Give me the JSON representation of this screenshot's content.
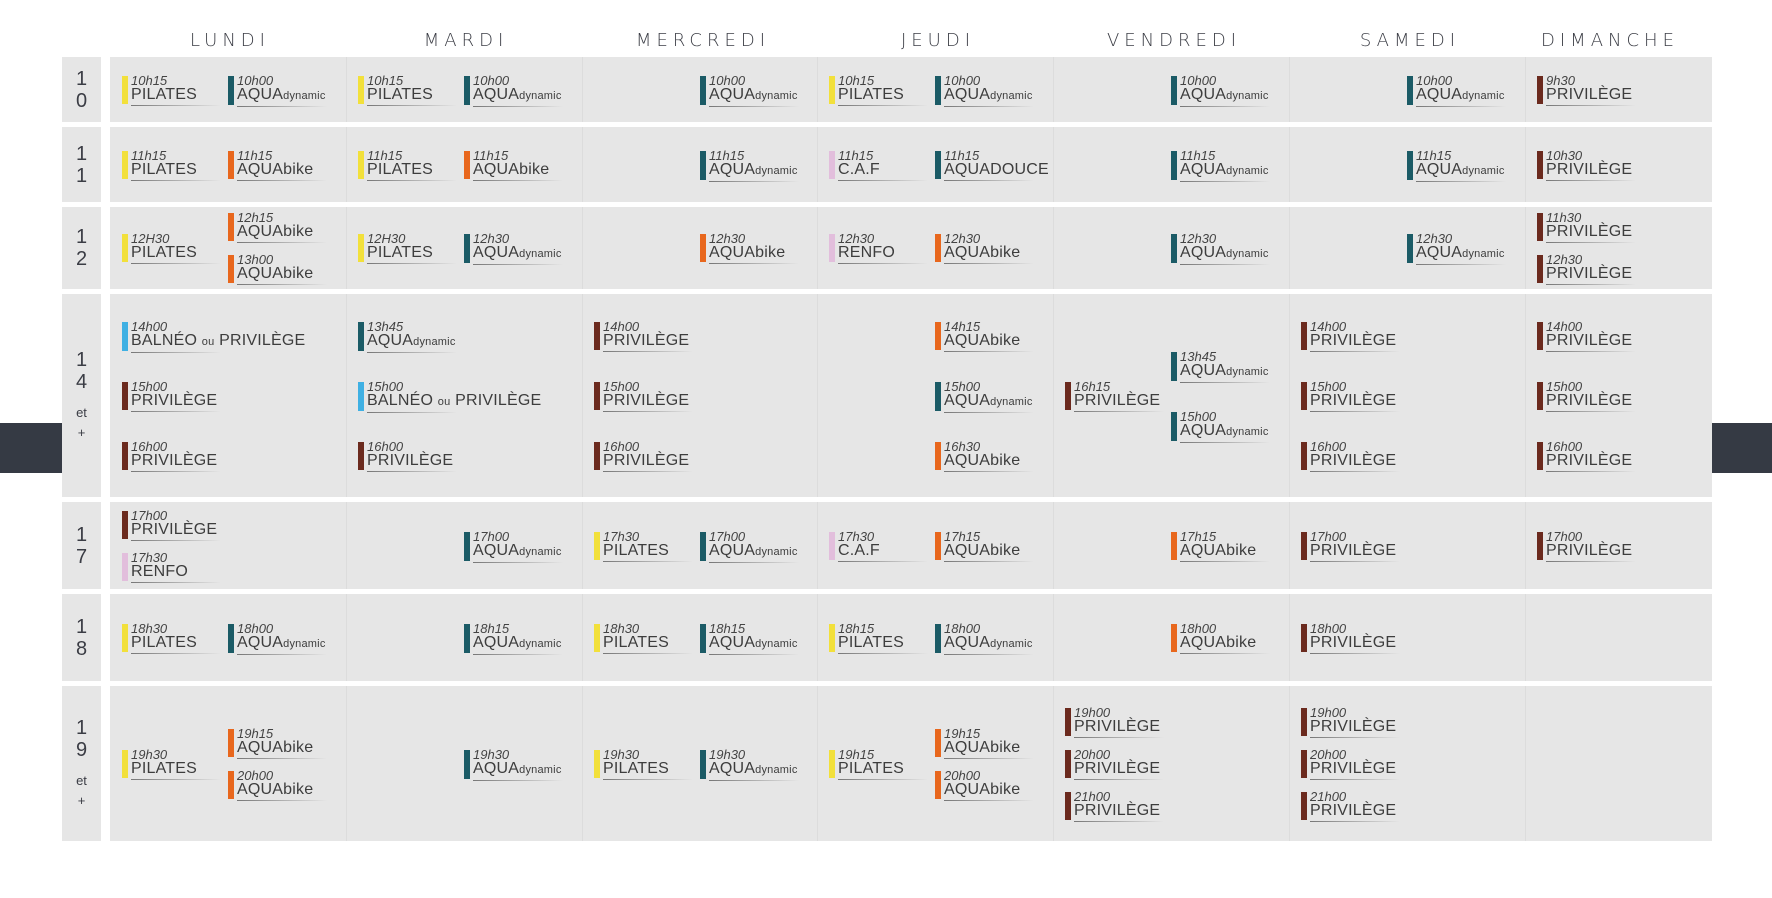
{
  "colors": {
    "pilates": "#f2e03b",
    "aquadynamic": "#1b5b66",
    "aquabike": "#e8671d",
    "privilege": "#6b2a1e",
    "balneo": "#3fb0e3",
    "caf": "#e2bedc",
    "renfo": "#e2bedc",
    "aquadouce": "#1b5b66",
    "panel": "#e6e6e6",
    "tab": "#353a44"
  },
  "days": [
    "LUNDI",
    "MARDI",
    "MERCREDI",
    "JEUDI",
    "VENDREDI",
    "SAMEDI",
    "DIMANCHE"
  ],
  "bands": [
    {
      "label": [
        "1",
        "0"
      ],
      "sub": []
    },
    {
      "label": [
        "1",
        "1"
      ],
      "sub": []
    },
    {
      "label": [
        "1",
        "2"
      ],
      "sub": []
    },
    {
      "label": [
        "1",
        "4"
      ],
      "sub": [
        "et",
        "+"
      ]
    },
    {
      "label": [
        "1",
        "7"
      ],
      "sub": []
    },
    {
      "label": [
        "1",
        "8"
      ],
      "sub": []
    },
    {
      "label": [
        "1",
        "9"
      ],
      "sub": [
        "et",
        "+"
      ]
    }
  ],
  "classes": [
    {
      "band": 0,
      "day": 0,
      "slot": 0,
      "time": "10h15",
      "name": "PILATES",
      "type": "pilates"
    },
    {
      "band": 0,
      "day": 0,
      "slot": 1,
      "time": "10h00",
      "name": "AQUA",
      "suffix": "dynamic",
      "type": "aquadynamic"
    },
    {
      "band": 0,
      "day": 1,
      "slot": 0,
      "time": "10h15",
      "name": "PILATES",
      "type": "pilates"
    },
    {
      "band": 0,
      "day": 1,
      "slot": 1,
      "time": "10h00",
      "name": "AQUA",
      "suffix": "dynamic",
      "type": "aquadynamic"
    },
    {
      "band": 0,
      "day": 2,
      "slot": 1,
      "time": "10h00",
      "name": "AQUA",
      "suffix": "dynamic",
      "type": "aquadynamic"
    },
    {
      "band": 0,
      "day": 3,
      "slot": 0,
      "time": "10h15",
      "name": "PILATES",
      "type": "pilates"
    },
    {
      "band": 0,
      "day": 3,
      "slot": 1,
      "time": "10h00",
      "name": "AQUA",
      "suffix": "dynamic",
      "type": "aquadynamic"
    },
    {
      "band": 0,
      "day": 4,
      "slot": 1,
      "time": "10h00",
      "name": "AQUA",
      "suffix": "dynamic",
      "type": "aquadynamic"
    },
    {
      "band": 0,
      "day": 5,
      "slot": 1,
      "time": "10h00",
      "name": "AQUA",
      "suffix": "dynamic",
      "type": "aquadynamic"
    },
    {
      "band": 0,
      "day": 6,
      "slot": 0,
      "time": "9h30",
      "name": "PRIVILÈGE",
      "type": "privilege"
    },
    {
      "band": 1,
      "day": 0,
      "slot": 0,
      "time": "11h15",
      "name": "PILATES",
      "type": "pilates"
    },
    {
      "band": 1,
      "day": 0,
      "slot": 1,
      "time": "11h15",
      "name": "AQUAbike",
      "type": "aquabike"
    },
    {
      "band": 1,
      "day": 1,
      "slot": 0,
      "time": "11h15",
      "name": "PILATES",
      "type": "pilates"
    },
    {
      "band": 1,
      "day": 1,
      "slot": 1,
      "time": "11h15",
      "name": "AQUAbike",
      "type": "aquabike"
    },
    {
      "band": 1,
      "day": 2,
      "slot": 1,
      "time": "11h15",
      "name": "AQUA",
      "suffix": "dynamic",
      "type": "aquadynamic"
    },
    {
      "band": 1,
      "day": 3,
      "slot": 0,
      "time": "11h15",
      "name": "C.A.F",
      "type": "caf"
    },
    {
      "band": 1,
      "day": 3,
      "slot": 1,
      "time": "11h15",
      "name": "AQUADOUCE",
      "type": "aquadouce"
    },
    {
      "band": 1,
      "day": 4,
      "slot": 1,
      "time": "11h15",
      "name": "AQUA",
      "suffix": "dynamic",
      "type": "aquadynamic"
    },
    {
      "band": 1,
      "day": 5,
      "slot": 1,
      "time": "11h15",
      "name": "AQUA",
      "suffix": "dynamic",
      "type": "aquadynamic"
    },
    {
      "band": 1,
      "day": 6,
      "slot": 0,
      "time": "10h30",
      "name": "PRIVILÈGE",
      "type": "privilege"
    },
    {
      "band": 2,
      "day": 0,
      "slot": 0,
      "time": "12H30",
      "name": "PILATES",
      "type": "pilates"
    },
    {
      "band": 2,
      "day": 0,
      "slot": 1,
      "time": "12h15",
      "name": "AQUAbike",
      "type": "aquabike"
    },
    {
      "band": 2,
      "day": 0,
      "slot": 1,
      "time": "13h00",
      "name": "AQUAbike",
      "type": "aquabike"
    },
    {
      "band": 2,
      "day": 1,
      "slot": 0,
      "time": "12H30",
      "name": "PILATES",
      "type": "pilates"
    },
    {
      "band": 2,
      "day": 1,
      "slot": 1,
      "time": "12h30",
      "name": "AQUA",
      "suffix": "dynamic",
      "type": "aquadynamic"
    },
    {
      "band": 2,
      "day": 2,
      "slot": 1,
      "time": "12h30",
      "name": "AQUAbike",
      "type": "aquabike"
    },
    {
      "band": 2,
      "day": 3,
      "slot": 0,
      "time": "12h30",
      "name": "RENFO",
      "type": "renfo"
    },
    {
      "band": 2,
      "day": 3,
      "slot": 1,
      "time": "12h30",
      "name": "AQUAbike",
      "type": "aquabike"
    },
    {
      "band": 2,
      "day": 4,
      "slot": 1,
      "time": "12h30",
      "name": "AQUA",
      "suffix": "dynamic",
      "type": "aquadynamic"
    },
    {
      "band": 2,
      "day": 5,
      "slot": 1,
      "time": "12h30",
      "name": "AQUA",
      "suffix": "dynamic",
      "type": "aquadynamic"
    },
    {
      "band": 2,
      "day": 6,
      "slot": 0,
      "time": "11h30",
      "name": "PRIVILÈGE",
      "type": "privilege"
    },
    {
      "band": 2,
      "day": 6,
      "slot": 0,
      "time": "12h30",
      "name": "PRIVILÈGE",
      "type": "privilege"
    },
    {
      "band": 3,
      "day": 0,
      "slot": 0,
      "time": "14h00",
      "name": "BALNÉO",
      "mid": "ou",
      "tail": "PRIVILÈGE",
      "type": "balneo"
    },
    {
      "band": 3,
      "day": 0,
      "slot": 0,
      "time": "15h00",
      "name": "PRIVILÈGE",
      "type": "privilege"
    },
    {
      "band": 3,
      "day": 0,
      "slot": 0,
      "time": "16h00",
      "name": "PRIVILÈGE",
      "type": "privilege"
    },
    {
      "band": 3,
      "day": 1,
      "slot": 0,
      "time": "13h45",
      "name": "AQUA",
      "suffix": "dynamic",
      "type": "aquadynamic"
    },
    {
      "band": 3,
      "day": 1,
      "slot": 0,
      "time": "15h00",
      "name": "BALNÉO",
      "mid": "ou",
      "tail": "PRIVILÈGE",
      "type": "balneo"
    },
    {
      "band": 3,
      "day": 1,
      "slot": 0,
      "time": "16h00",
      "name": "PRIVILÈGE",
      "type": "privilege"
    },
    {
      "band": 3,
      "day": 2,
      "slot": 0,
      "time": "14h00",
      "name": "PRIVILÈGE",
      "type": "privilege"
    },
    {
      "band": 3,
      "day": 2,
      "slot": 0,
      "time": "15h00",
      "name": "PRIVILÈGE",
      "type": "privilege"
    },
    {
      "band": 3,
      "day": 2,
      "slot": 0,
      "time": "16h00",
      "name": "PRIVILÈGE",
      "type": "privilege"
    },
    {
      "band": 3,
      "day": 3,
      "slot": 1,
      "time": "14h15",
      "name": "AQUAbike",
      "type": "aquabike"
    },
    {
      "band": 3,
      "day": 3,
      "slot": 1,
      "time": "15h00",
      "name": "AQUA",
      "suffix": "dynamic",
      "type": "aquadynamic"
    },
    {
      "band": 3,
      "day": 3,
      "slot": 1,
      "time": "16h30",
      "name": "AQUAbike",
      "type": "aquabike"
    },
    {
      "band": 3,
      "day": 4,
      "slot": 0,
      "time": "16h15",
      "name": "PRIVILÈGE",
      "type": "privilege"
    },
    {
      "band": 3,
      "day": 4,
      "slot": 1,
      "time": "13h45",
      "name": "AQUA",
      "suffix": "dynamic",
      "type": "aquadynamic"
    },
    {
      "band": 3,
      "day": 4,
      "slot": 1,
      "time": "15h00",
      "name": "AQUA",
      "suffix": "dynamic",
      "type": "aquadynamic"
    },
    {
      "band": 3,
      "day": 5,
      "slot": 0,
      "time": "14h00",
      "name": "PRIVILÈGE",
      "type": "privilege"
    },
    {
      "band": 3,
      "day": 5,
      "slot": 0,
      "time": "15h00",
      "name": "PRIVILÈGE",
      "type": "privilege"
    },
    {
      "band": 3,
      "day": 5,
      "slot": 0,
      "time": "16h00",
      "name": "PRIVILÈGE",
      "type": "privilege"
    },
    {
      "band": 3,
      "day": 6,
      "slot": 0,
      "time": "14h00",
      "name": "PRIVILÈGE",
      "type": "privilege"
    },
    {
      "band": 3,
      "day": 6,
      "slot": 0,
      "time": "15h00",
      "name": "PRIVILÈGE",
      "type": "privilege"
    },
    {
      "band": 3,
      "day": 6,
      "slot": 0,
      "time": "16h00",
      "name": "PRIVILÈGE",
      "type": "privilege"
    },
    {
      "band": 4,
      "day": 0,
      "slot": 0,
      "time": "17h00",
      "name": "PRIVILÈGE",
      "type": "privilege"
    },
    {
      "band": 4,
      "day": 0,
      "slot": 0,
      "time": "17h30",
      "name": "RENFO",
      "type": "renfo"
    },
    {
      "band": 4,
      "day": 1,
      "slot": 1,
      "time": "17h00",
      "name": "AQUA",
      "suffix": "dynamic",
      "type": "aquadynamic"
    },
    {
      "band": 4,
      "day": 2,
      "slot": 0,
      "time": "17h30",
      "name": "PILATES",
      "type": "pilates"
    },
    {
      "band": 4,
      "day": 2,
      "slot": 1,
      "time": "17h00",
      "name": "AQUA",
      "suffix": "dynamic",
      "type": "aquadynamic"
    },
    {
      "band": 4,
      "day": 3,
      "slot": 0,
      "time": "17h30",
      "name": "C.A.F",
      "type": "caf"
    },
    {
      "band": 4,
      "day": 3,
      "slot": 1,
      "time": "17h15",
      "name": "AQUAbike",
      "type": "aquabike"
    },
    {
      "band": 4,
      "day": 4,
      "slot": 1,
      "time": "17h15",
      "name": "AQUAbike",
      "type": "aquabike"
    },
    {
      "band": 4,
      "day": 5,
      "slot": 0,
      "time": "17h00",
      "name": "PRIVILÈGE",
      "type": "privilege"
    },
    {
      "band": 4,
      "day": 6,
      "slot": 0,
      "time": "17h00",
      "name": "PRIVILÈGE",
      "type": "privilege"
    },
    {
      "band": 5,
      "day": 0,
      "slot": 0,
      "time": "18h30",
      "name": "PILATES",
      "type": "pilates"
    },
    {
      "band": 5,
      "day": 0,
      "slot": 1,
      "time": "18h00",
      "name": "AQUA",
      "suffix": "dynamic",
      "type": "aquadynamic"
    },
    {
      "band": 5,
      "day": 1,
      "slot": 1,
      "time": "18h15",
      "name": "AQUA",
      "suffix": "dynamic",
      "type": "aquadynamic"
    },
    {
      "band": 5,
      "day": 2,
      "slot": 0,
      "time": "18h30",
      "name": "PILATES",
      "type": "pilates"
    },
    {
      "band": 5,
      "day": 2,
      "slot": 1,
      "time": "18h15",
      "name": "AQUA",
      "suffix": "dynamic",
      "type": "aquadynamic"
    },
    {
      "band": 5,
      "day": 3,
      "slot": 0,
      "time": "18h15",
      "name": "PILATES",
      "type": "pilates"
    },
    {
      "band": 5,
      "day": 3,
      "slot": 1,
      "time": "18h00",
      "name": "AQUA",
      "suffix": "dynamic",
      "type": "aquadynamic"
    },
    {
      "band": 5,
      "day": 4,
      "slot": 1,
      "time": "18h00",
      "name": "AQUAbike",
      "type": "aquabike"
    },
    {
      "band": 5,
      "day": 5,
      "slot": 0,
      "time": "18h00",
      "name": "PRIVILÈGE",
      "type": "privilege"
    },
    {
      "band": 6,
      "day": 0,
      "slot": 0,
      "time": "19h30",
      "name": "PILATES",
      "type": "pilates"
    },
    {
      "band": 6,
      "day": 0,
      "slot": 1,
      "time": "19h15",
      "name": "AQUAbike",
      "type": "aquabike"
    },
    {
      "band": 6,
      "day": 0,
      "slot": 1,
      "time": "20h00",
      "name": "AQUAbike",
      "type": "aquabike"
    },
    {
      "band": 6,
      "day": 1,
      "slot": 1,
      "time": "19h30",
      "name": "AQUA",
      "suffix": "dynamic",
      "type": "aquadynamic"
    },
    {
      "band": 6,
      "day": 2,
      "slot": 0,
      "time": "19h30",
      "name": "PILATES",
      "type": "pilates"
    },
    {
      "band": 6,
      "day": 2,
      "slot": 1,
      "time": "19h30",
      "name": "AQUA",
      "suffix": "dynamic",
      "type": "aquadynamic"
    },
    {
      "band": 6,
      "day": 3,
      "slot": 0,
      "time": "19h15",
      "name": "PILATES",
      "type": "pilates"
    },
    {
      "band": 6,
      "day": 3,
      "slot": 1,
      "time": "19h15",
      "name": "AQUAbike",
      "type": "aquabike"
    },
    {
      "band": 6,
      "day": 3,
      "slot": 1,
      "time": "20h00",
      "name": "AQUAbike",
      "type": "aquabike"
    },
    {
      "band": 6,
      "day": 4,
      "slot": 0,
      "time": "19h00",
      "name": "PRIVILÈGE",
      "type": "privilege"
    },
    {
      "band": 6,
      "day": 4,
      "slot": 0,
      "time": "20h00",
      "name": "PRIVILÈGE",
      "type": "privilege"
    },
    {
      "band": 6,
      "day": 4,
      "slot": 0,
      "time": "21h00",
      "name": "PRIVILÈGE",
      "type": "privilege"
    },
    {
      "band": 6,
      "day": 5,
      "slot": 0,
      "time": "19h00",
      "name": "PRIVILÈGE",
      "type": "privilege"
    },
    {
      "band": 6,
      "day": 5,
      "slot": 0,
      "time": "20h00",
      "name": "PRIVILÈGE",
      "type": "privilege"
    },
    {
      "band": 6,
      "day": 5,
      "slot": 0,
      "time": "21h00",
      "name": "PRIVILÈGE",
      "type": "privilege"
    }
  ]
}
